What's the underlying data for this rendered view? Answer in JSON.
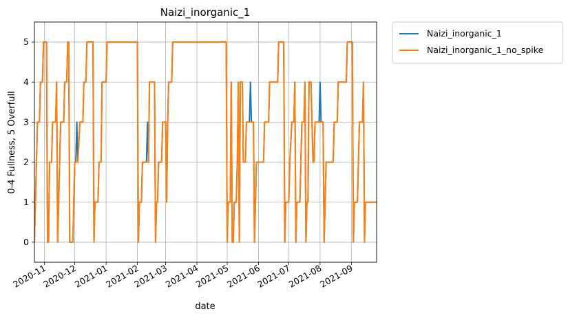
{
  "chart_data": {
    "type": "line",
    "title": "Naizi_inorganic_1",
    "xlabel": "date",
    "ylabel": "0-4 Fullness, 5 Overfull",
    "x_type": "date",
    "xlim": [
      "2020-10-22",
      "2021-09-26"
    ],
    "ylim": [
      -0.5,
      5.5
    ],
    "x_ticks": [
      "2020-11-01",
      "2020-12-01",
      "2021-01-01",
      "2021-02-01",
      "2021-03-01",
      "2021-04-01",
      "2021-05-01",
      "2021-06-01",
      "2021-07-01",
      "2021-08-01",
      "2021-09-01"
    ],
    "x_tick_labels": [
      "2020-11",
      "2020-12",
      "2021-01",
      "2021-02",
      "2021-03",
      "2021-04",
      "2021-05",
      "2021-06",
      "2021-07",
      "2021-08",
      "2021-09"
    ],
    "y_ticks": [
      0,
      1,
      2,
      3,
      4,
      5
    ],
    "y_tick_labels": [
      "0",
      "1",
      "2",
      "3",
      "4",
      "5"
    ],
    "grid": true,
    "legend_position": "outside-upper-right",
    "series": [
      {
        "name": "Naizi_inorganic_1",
        "color": "#1f77b4",
        "points": [
          [
            "2020-10-22",
            0
          ],
          [
            "2020-10-24",
            2
          ],
          [
            "2020-10-25",
            3
          ],
          [
            "2020-10-27",
            3
          ],
          [
            "2020-10-28",
            4
          ],
          [
            "2020-10-30",
            4
          ],
          [
            "2020-10-31",
            5
          ],
          [
            "2020-11-03",
            5
          ],
          [
            "2020-11-04",
            0
          ],
          [
            "2020-11-05",
            0
          ],
          [
            "2020-11-06",
            2
          ],
          [
            "2020-11-08",
            2
          ],
          [
            "2020-11-09",
            3
          ],
          [
            "2020-11-12",
            3
          ],
          [
            "2020-11-13",
            4
          ],
          [
            "2020-11-14",
            0
          ],
          [
            "2020-11-16",
            2
          ],
          [
            "2020-11-17",
            3
          ],
          [
            "2020-11-20",
            3
          ],
          [
            "2020-11-21",
            4
          ],
          [
            "2020-11-23",
            4
          ],
          [
            "2020-11-24",
            5
          ],
          [
            "2020-11-25",
            5
          ],
          [
            "2020-11-26",
            0
          ],
          [
            "2020-11-29",
            0
          ],
          [
            "2020-11-30",
            1
          ],
          [
            "2020-12-01",
            2
          ],
          [
            "2020-12-02",
            2
          ],
          [
            "2020-12-03",
            3
          ],
          [
            "2020-12-04",
            2
          ],
          [
            "2020-12-06",
            3
          ],
          [
            "2020-12-09",
            3
          ],
          [
            "2020-12-10",
            4
          ],
          [
            "2020-12-12",
            4
          ],
          [
            "2020-12-13",
            5
          ],
          [
            "2020-12-19",
            5
          ],
          [
            "2020-12-20",
            0
          ],
          [
            "2020-12-21",
            1
          ],
          [
            "2020-12-24",
            1
          ],
          [
            "2020-12-25",
            2
          ],
          [
            "2020-12-27",
            2
          ],
          [
            "2020-12-28",
            4
          ],
          [
            "2021-01-01",
            4
          ],
          [
            "2021-01-02",
            5
          ],
          [
            "2021-02-01",
            5
          ],
          [
            "2021-02-02",
            0
          ],
          [
            "2021-02-03",
            1
          ],
          [
            "2021-02-05",
            1
          ],
          [
            "2021-02-06",
            2
          ],
          [
            "2021-02-10",
            2
          ],
          [
            "2021-02-11",
            3
          ],
          [
            "2021-02-12",
            2
          ],
          [
            "2021-02-13",
            4
          ],
          [
            "2021-02-18",
            4
          ],
          [
            "2021-02-19",
            0
          ],
          [
            "2021-02-20",
            1
          ],
          [
            "2021-02-21",
            1
          ],
          [
            "2021-02-22",
            2
          ],
          [
            "2021-02-25",
            2
          ],
          [
            "2021-02-26",
            3
          ],
          [
            "2021-03-01",
            3
          ],
          [
            "2021-03-02",
            1
          ],
          [
            "2021-03-03",
            3
          ],
          [
            "2021-03-04",
            4
          ],
          [
            "2021-03-07",
            4
          ],
          [
            "2021-03-08",
            5
          ],
          [
            "2021-04-30",
            5
          ],
          [
            "2021-05-01",
            0
          ],
          [
            "2021-05-02",
            1
          ],
          [
            "2021-05-04",
            1
          ],
          [
            "2021-05-05",
            4
          ],
          [
            "2021-05-06",
            0
          ],
          [
            "2021-05-07",
            0
          ],
          [
            "2021-05-08",
            1
          ],
          [
            "2021-05-10",
            1
          ],
          [
            "2021-05-11",
            2
          ],
          [
            "2021-05-12",
            4
          ],
          [
            "2021-05-13",
            0
          ],
          [
            "2021-05-14",
            4
          ],
          [
            "2021-05-16",
            4
          ],
          [
            "2021-05-17",
            2
          ],
          [
            "2021-05-19",
            2
          ],
          [
            "2021-05-20",
            3
          ],
          [
            "2021-05-23",
            3
          ],
          [
            "2021-05-24",
            4
          ],
          [
            "2021-05-25",
            3
          ],
          [
            "2021-05-27",
            3
          ],
          [
            "2021-05-28",
            0
          ],
          [
            "2021-05-29",
            1
          ],
          [
            "2021-05-30",
            2
          ],
          [
            "2021-06-06",
            2
          ],
          [
            "2021-06-07",
            3
          ],
          [
            "2021-06-11",
            3
          ],
          [
            "2021-06-12",
            4
          ],
          [
            "2021-06-20",
            4
          ],
          [
            "2021-06-21",
            5
          ],
          [
            "2021-06-26",
            5
          ],
          [
            "2021-06-27",
            0
          ],
          [
            "2021-06-28",
            1
          ],
          [
            "2021-07-01",
            1
          ],
          [
            "2021-07-02",
            2
          ],
          [
            "2021-07-04",
            3
          ],
          [
            "2021-07-06",
            3
          ],
          [
            "2021-07-07",
            4
          ],
          [
            "2021-07-08",
            0
          ],
          [
            "2021-07-09",
            1
          ],
          [
            "2021-07-10",
            1
          ],
          [
            "2021-07-12",
            1
          ],
          [
            "2021-07-13",
            2
          ],
          [
            "2021-07-14",
            3
          ],
          [
            "2021-07-16",
            3
          ],
          [
            "2021-07-17",
            4
          ],
          [
            "2021-07-18",
            0
          ],
          [
            "2021-07-19",
            1
          ],
          [
            "2021-07-20",
            1
          ],
          [
            "2021-07-21",
            4
          ],
          [
            "2021-07-23",
            4
          ],
          [
            "2021-07-25",
            2
          ],
          [
            "2021-07-26",
            2
          ],
          [
            "2021-07-27",
            3
          ],
          [
            "2021-07-31",
            3
          ],
          [
            "2021-08-01",
            4
          ],
          [
            "2021-08-02",
            3
          ],
          [
            "2021-08-04",
            3
          ],
          [
            "2021-08-05",
            0
          ],
          [
            "2021-08-06",
            1
          ],
          [
            "2021-08-07",
            2
          ],
          [
            "2021-08-14",
            2
          ],
          [
            "2021-08-15",
            3
          ],
          [
            "2021-08-18",
            3
          ],
          [
            "2021-08-19",
            4
          ],
          [
            "2021-08-27",
            4
          ],
          [
            "2021-08-28",
            5
          ],
          [
            "2021-09-02",
            5
          ],
          [
            "2021-09-03",
            0
          ],
          [
            "2021-09-04",
            1
          ],
          [
            "2021-09-07",
            1
          ],
          [
            "2021-09-08",
            2
          ],
          [
            "2021-09-09",
            3
          ],
          [
            "2021-09-12",
            3
          ],
          [
            "2021-09-13",
            4
          ],
          [
            "2021-09-14",
            0
          ],
          [
            "2021-09-15",
            1
          ],
          [
            "2021-09-26",
            1
          ]
        ]
      },
      {
        "name": "Naizi_inorganic_1_no_spike",
        "color": "#ff7f0e",
        "points": [
          [
            "2020-10-22",
            0
          ],
          [
            "2020-10-24",
            2
          ],
          [
            "2020-10-25",
            3
          ],
          [
            "2020-10-27",
            3
          ],
          [
            "2020-10-28",
            4
          ],
          [
            "2020-10-30",
            4
          ],
          [
            "2020-10-31",
            5
          ],
          [
            "2020-11-03",
            5
          ],
          [
            "2020-11-04",
            0
          ],
          [
            "2020-11-05",
            0
          ],
          [
            "2020-11-06",
            2
          ],
          [
            "2020-11-08",
            2
          ],
          [
            "2020-11-09",
            3
          ],
          [
            "2020-11-12",
            3
          ],
          [
            "2020-11-13",
            4
          ],
          [
            "2020-11-14",
            0
          ],
          [
            "2020-11-16",
            2
          ],
          [
            "2020-11-17",
            3
          ],
          [
            "2020-11-20",
            3
          ],
          [
            "2020-11-21",
            4
          ],
          [
            "2020-11-23",
            4
          ],
          [
            "2020-11-24",
            5
          ],
          [
            "2020-11-25",
            5
          ],
          [
            "2020-11-26",
            0
          ],
          [
            "2020-11-29",
            0
          ],
          [
            "2020-11-30",
            1
          ],
          [
            "2020-12-01",
            2
          ],
          [
            "2020-12-02",
            2
          ],
          [
            "2020-12-03",
            2
          ],
          [
            "2020-12-04",
            2
          ],
          [
            "2020-12-06",
            3
          ],
          [
            "2020-12-09",
            3
          ],
          [
            "2020-12-10",
            4
          ],
          [
            "2020-12-12",
            4
          ],
          [
            "2020-12-13",
            5
          ],
          [
            "2020-12-19",
            5
          ],
          [
            "2020-12-20",
            0
          ],
          [
            "2020-12-21",
            1
          ],
          [
            "2020-12-24",
            1
          ],
          [
            "2020-12-25",
            2
          ],
          [
            "2020-12-27",
            2
          ],
          [
            "2020-12-28",
            4
          ],
          [
            "2021-01-01",
            4
          ],
          [
            "2021-01-02",
            5
          ],
          [
            "2021-02-01",
            5
          ],
          [
            "2021-02-02",
            0
          ],
          [
            "2021-02-03",
            1
          ],
          [
            "2021-02-05",
            1
          ],
          [
            "2021-02-06",
            2
          ],
          [
            "2021-02-10",
            2
          ],
          [
            "2021-02-11",
            2
          ],
          [
            "2021-02-12",
            2
          ],
          [
            "2021-02-13",
            4
          ],
          [
            "2021-02-18",
            4
          ],
          [
            "2021-02-19",
            0
          ],
          [
            "2021-02-20",
            1
          ],
          [
            "2021-02-21",
            1
          ],
          [
            "2021-02-22",
            2
          ],
          [
            "2021-02-25",
            2
          ],
          [
            "2021-02-26",
            3
          ],
          [
            "2021-03-01",
            3
          ],
          [
            "2021-03-02",
            1
          ],
          [
            "2021-03-03",
            3
          ],
          [
            "2021-03-04",
            4
          ],
          [
            "2021-03-07",
            4
          ],
          [
            "2021-03-08",
            5
          ],
          [
            "2021-04-30",
            5
          ],
          [
            "2021-05-01",
            0
          ],
          [
            "2021-05-02",
            1
          ],
          [
            "2021-05-04",
            1
          ],
          [
            "2021-05-05",
            4
          ],
          [
            "2021-05-06",
            0
          ],
          [
            "2021-05-07",
            0
          ],
          [
            "2021-05-08",
            1
          ],
          [
            "2021-05-10",
            1
          ],
          [
            "2021-05-11",
            2
          ],
          [
            "2021-05-12",
            4
          ],
          [
            "2021-05-13",
            0
          ],
          [
            "2021-05-14",
            4
          ],
          [
            "2021-05-16",
            4
          ],
          [
            "2021-05-17",
            2
          ],
          [
            "2021-05-19",
            2
          ],
          [
            "2021-05-20",
            3
          ],
          [
            "2021-05-23",
            3
          ],
          [
            "2021-05-24",
            3
          ],
          [
            "2021-05-25",
            3
          ],
          [
            "2021-05-27",
            3
          ],
          [
            "2021-05-28",
            0
          ],
          [
            "2021-05-29",
            1
          ],
          [
            "2021-05-30",
            2
          ],
          [
            "2021-06-06",
            2
          ],
          [
            "2021-06-07",
            3
          ],
          [
            "2021-06-11",
            3
          ],
          [
            "2021-06-12",
            4
          ],
          [
            "2021-06-20",
            4
          ],
          [
            "2021-06-21",
            5
          ],
          [
            "2021-06-26",
            5
          ],
          [
            "2021-06-27",
            0
          ],
          [
            "2021-06-28",
            1
          ],
          [
            "2021-07-01",
            1
          ],
          [
            "2021-07-02",
            2
          ],
          [
            "2021-07-04",
            3
          ],
          [
            "2021-07-06",
            3
          ],
          [
            "2021-07-07",
            4
          ],
          [
            "2021-07-08",
            0
          ],
          [
            "2021-07-09",
            1
          ],
          [
            "2021-07-10",
            1
          ],
          [
            "2021-07-12",
            1
          ],
          [
            "2021-07-13",
            2
          ],
          [
            "2021-07-14",
            3
          ],
          [
            "2021-07-16",
            3
          ],
          [
            "2021-07-17",
            4
          ],
          [
            "2021-07-18",
            0
          ],
          [
            "2021-07-19",
            1
          ],
          [
            "2021-07-20",
            1
          ],
          [
            "2021-07-21",
            4
          ],
          [
            "2021-07-23",
            4
          ],
          [
            "2021-07-25",
            2
          ],
          [
            "2021-07-26",
            2
          ],
          [
            "2021-07-27",
            3
          ],
          [
            "2021-07-31",
            3
          ],
          [
            "2021-08-01",
            3
          ],
          [
            "2021-08-02",
            3
          ],
          [
            "2021-08-04",
            3
          ],
          [
            "2021-08-05",
            0
          ],
          [
            "2021-08-06",
            1
          ],
          [
            "2021-08-07",
            2
          ],
          [
            "2021-08-14",
            2
          ],
          [
            "2021-08-15",
            3
          ],
          [
            "2021-08-18",
            3
          ],
          [
            "2021-08-19",
            4
          ],
          [
            "2021-08-27",
            4
          ],
          [
            "2021-08-28",
            5
          ],
          [
            "2021-09-02",
            5
          ],
          [
            "2021-09-03",
            0
          ],
          [
            "2021-09-04",
            1
          ],
          [
            "2021-09-07",
            1
          ],
          [
            "2021-09-08",
            2
          ],
          [
            "2021-09-09",
            3
          ],
          [
            "2021-09-12",
            3
          ],
          [
            "2021-09-13",
            4
          ],
          [
            "2021-09-14",
            0
          ],
          [
            "2021-09-15",
            1
          ],
          [
            "2021-09-26",
            1
          ]
        ]
      }
    ]
  }
}
